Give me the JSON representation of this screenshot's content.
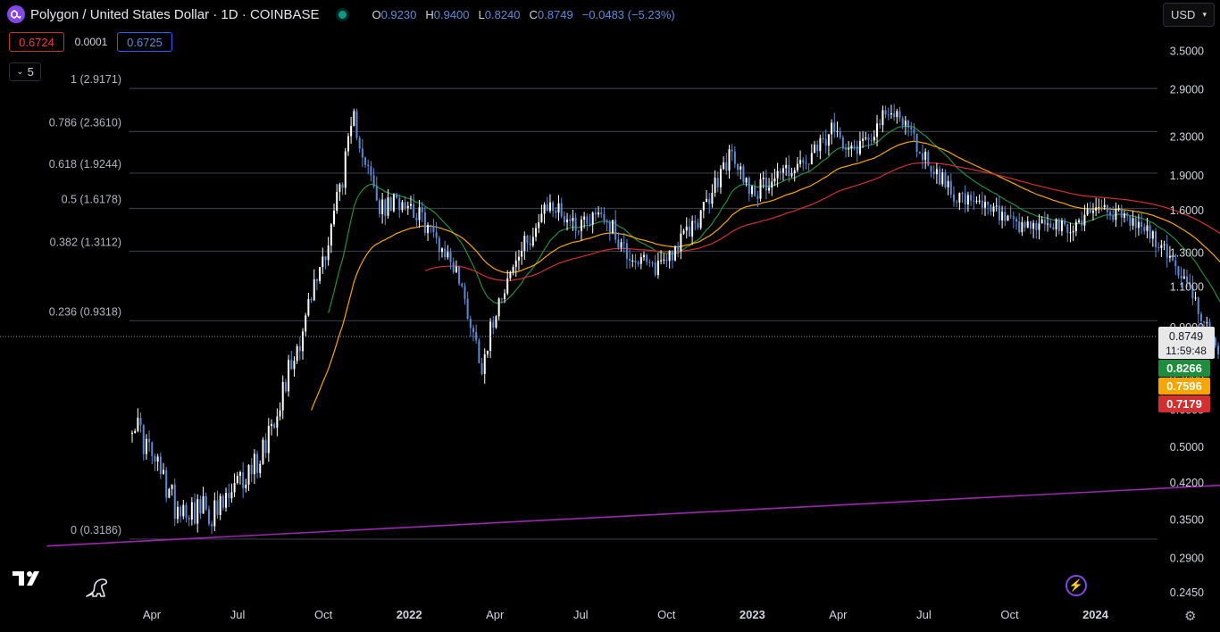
{
  "header": {
    "title": "Polygon / United States Dollar · 1D · COINBASE",
    "ohlc": [
      {
        "k": "O",
        "v": "0.9230"
      },
      {
        "k": "H",
        "v": "0.9400"
      },
      {
        "k": "L",
        "v": "0.8240"
      },
      {
        "k": "C",
        "v": "0.8749"
      }
    ],
    "change": "−0.0483 (−5.23%)"
  },
  "trade": {
    "sell": "0.6724",
    "spread": "0.0001",
    "buy": "0.6725"
  },
  "indicators_toggle": "5",
  "currency": "USD",
  "chart_data": {
    "type": "candlestick",
    "y_scale": "log",
    "ylim": [
      0.22,
      3.9
    ],
    "y_ticks": [
      "3.5000",
      "2.9000",
      "2.3000",
      "1.9000",
      "1.6000",
      "1.3000",
      "1.1000",
      "0.9000",
      "0.7000",
      "0.6000",
      "0.5000",
      "0.4200",
      "0.3500",
      "0.2900",
      "0.2450"
    ],
    "x_ticks": [
      "Apr",
      "Jul",
      "Oct",
      "2022",
      "Apr",
      "Jul",
      "Oct",
      "2023",
      "Apr",
      "Jul",
      "Oct",
      "2024"
    ],
    "x_bold": [
      "2022",
      "2023",
      "2024"
    ],
    "close_path": [
      [
        0.0,
        0.58
      ],
      [
        0.5,
        0.38
      ],
      [
        1.0,
        0.36
      ],
      [
        1.5,
        0.48
      ],
      [
        2.0,
        0.9
      ],
      [
        2.3,
        1.4
      ],
      [
        2.6,
        2.5
      ],
      [
        2.9,
        1.6
      ],
      [
        3.2,
        1.7
      ],
      [
        3.5,
        1.45
      ],
      [
        3.8,
        1.2
      ],
      [
        4.1,
        0.75
      ],
      [
        4.3,
        1.05
      ],
      [
        4.6,
        1.35
      ],
      [
        4.9,
        1.65
      ],
      [
        5.2,
        1.5
      ],
      [
        5.5,
        1.6
      ],
      [
        5.8,
        1.3
      ],
      [
        6.1,
        1.2
      ],
      [
        6.4,
        1.35
      ],
      [
        6.7,
        1.6
      ],
      [
        7.0,
        2.1
      ],
      [
        7.3,
        1.75
      ],
      [
        7.6,
        1.95
      ],
      [
        7.9,
        2.0
      ],
      [
        8.2,
        2.35
      ],
      [
        8.5,
        2.2
      ],
      [
        8.8,
        2.5
      ],
      [
        9.0,
        2.6
      ],
      [
        9.2,
        2.2
      ],
      [
        9.5,
        1.85
      ],
      [
        9.8,
        1.65
      ],
      [
        10.1,
        1.6
      ],
      [
        10.4,
        1.45
      ],
      [
        10.7,
        1.5
      ],
      [
        11.0,
        1.45
      ],
      [
        11.3,
        1.65
      ],
      [
        11.6,
        1.55
      ],
      [
        11.9,
        1.45
      ],
      [
        12.2,
        1.25
      ],
      [
        12.5,
        1.0
      ],
      [
        12.8,
        0.72
      ],
      [
        13.1,
        0.62
      ],
      [
        13.4,
        0.48
      ],
      [
        13.6,
        0.38
      ],
      [
        13.8,
        0.52
      ],
      [
        14.0,
        0.58
      ],
      [
        14.2,
        0.85
      ],
      [
        14.5,
        0.9
      ],
      [
        14.8,
        0.82
      ],
      [
        15.1,
        0.85
      ],
      [
        15.4,
        0.8
      ],
      [
        15.7,
        0.78
      ],
      [
        16.0,
        0.85
      ],
      [
        16.3,
        0.9
      ],
      [
        16.6,
        0.88
      ],
      [
        16.9,
        0.85
      ],
      [
        17.2,
        0.9
      ],
      [
        17.5,
        0.84
      ],
      [
        17.8,
        0.8
      ],
      [
        18.1,
        0.88
      ],
      [
        18.4,
        1.0
      ],
      [
        18.7,
        1.2
      ],
      [
        19.0,
        1.3
      ],
      [
        19.2,
        1.5
      ],
      [
        19.4,
        1.35
      ],
      [
        19.7,
        1.2
      ],
      [
        20.0,
        1.18
      ],
      [
        20.3,
        1.12
      ],
      [
        20.6,
        1.1
      ],
      [
        20.9,
        1.05
      ],
      [
        21.2,
        1.0
      ],
      [
        21.5,
        0.95
      ],
      [
        21.8,
        0.92
      ],
      [
        22.0,
        0.88
      ],
      [
        22.3,
        0.78
      ],
      [
        22.6,
        0.65
      ],
      [
        22.9,
        0.68
      ],
      [
        23.2,
        0.75
      ],
      [
        23.5,
        0.72
      ],
      [
        23.8,
        0.68
      ],
      [
        24.1,
        0.62
      ],
      [
        24.4,
        0.55
      ],
      [
        24.7,
        0.53
      ],
      [
        25.0,
        0.52
      ],
      [
        25.3,
        0.55
      ],
      [
        25.6,
        0.54
      ],
      [
        25.9,
        0.58
      ],
      [
        26.2,
        0.7
      ],
      [
        26.5,
        0.85
      ],
      [
        26.8,
        0.78
      ],
      [
        27.0,
        0.8
      ],
      [
        27.2,
        0.87
      ]
    ],
    "fib_levels": [
      {
        "label": "1 (2.9171)",
        "value": 2.9171
      },
      {
        "label": "0.786 (2.3610)",
        "value": 2.361
      },
      {
        "label": "0.618 (1.9244)",
        "value": 1.9244
      },
      {
        "label": "0.5 (1.6178)",
        "value": 1.6178
      },
      {
        "label": "0.382 (1.3112)",
        "value": 1.3112
      },
      {
        "label": "0.236 (0.9318)",
        "value": 0.9318
      },
      {
        "label": "0 (0.3186)",
        "value": 0.3186
      }
    ],
    "trendline": [
      [
        -1.0,
        0.308
      ],
      [
        30.0,
        0.603
      ]
    ],
    "ma_series": [
      {
        "value": 0.8266,
        "color": "#1e8e3e",
        "label": "0.8266"
      },
      {
        "value": 0.7596,
        "color": "#f7a600",
        "label": "0.7596"
      },
      {
        "value": 0.7179,
        "color": "#d32f2f",
        "label": "0.7179"
      }
    ],
    "last_price": {
      "value": 0.8749,
      "label": "0.8749",
      "countdown": "11:59:48"
    },
    "colors": {
      "candle": "#5b8bd6",
      "candle_up": "#ffffff",
      "grid": "#363a45",
      "trendline": "#9c27b0",
      "text": "#b2b5be"
    }
  }
}
